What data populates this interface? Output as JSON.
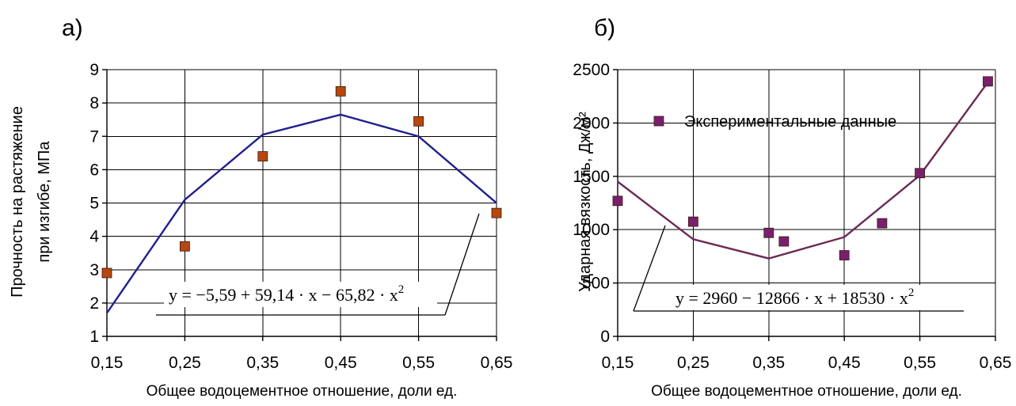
{
  "chart_data": [
    {
      "type": "scatter",
      "panel_label": "а)",
      "xlabel": "Общее водоцементное отношение, доли ед.",
      "ylabel": [
        "Прочность на растяжение",
        "при изгибе, МПа"
      ],
      "xlim": [
        0.15,
        0.65
      ],
      "ylim": [
        1,
        9
      ],
      "xticks": [
        "0,15",
        "0,25",
        "0,35",
        "0,45",
        "0,55",
        "0,65"
      ],
      "yticks": [
        "1",
        "2",
        "3",
        "4",
        "5",
        "6",
        "7",
        "8",
        "9"
      ],
      "grid": true,
      "points": [
        {
          "x": 0.15,
          "y": 2.9
        },
        {
          "x": 0.25,
          "y": 3.7
        },
        {
          "x": 0.35,
          "y": 6.4
        },
        {
          "x": 0.45,
          "y": 8.35
        },
        {
          "x": 0.55,
          "y": 7.45
        },
        {
          "x": 0.65,
          "y": 4.7
        }
      ],
      "trend": {
        "x": [
          0.15,
          0.25,
          0.35,
          0.45,
          0.55,
          0.65
        ],
        "y": [
          1.7,
          5.1,
          7.05,
          7.65,
          7.0,
          5.0
        ]
      },
      "equation": "y = −5,59 + 59,14 · x − 65,82 · x",
      "equation_exp": "2",
      "marker_color": "#b5470f",
      "line_color": "#1f1f8f"
    },
    {
      "type": "scatter",
      "panel_label": "б)",
      "xlabel": "Общее водоцементное отношение, доли ед.",
      "ylabel": [
        "Ударная вязкость, Дж/м²"
      ],
      "xlim": [
        0.15,
        0.65
      ],
      "ylim": [
        0,
        2500
      ],
      "xticks": [
        "0,15",
        "0,25",
        "0,35",
        "0,45",
        "0,55",
        "0,65"
      ],
      "yticks": [
        "0",
        "500",
        "1000",
        "1500",
        "2000",
        "2500"
      ],
      "grid": true,
      "legend": "Экспериментальные данные",
      "points": [
        {
          "x": 0.15,
          "y": 1270
        },
        {
          "x": 0.25,
          "y": 1075
        },
        {
          "x": 0.35,
          "y": 970
        },
        {
          "x": 0.37,
          "y": 890
        },
        {
          "x": 0.45,
          "y": 760
        },
        {
          "x": 0.5,
          "y": 1060
        },
        {
          "x": 0.55,
          "y": 1530
        },
        {
          "x": 0.64,
          "y": 2390
        }
      ],
      "trend": {
        "x": [
          0.15,
          0.25,
          0.35,
          0.45,
          0.55,
          0.645
        ],
        "y": [
          1450,
          910,
          730,
          930,
          1510,
          2430
        ]
      },
      "equation": "y = 2960 − 12866 · x + 18530 · x",
      "equation_exp": "2",
      "marker_color": "#7a1f6e",
      "line_color": "#6b2a55"
    }
  ]
}
